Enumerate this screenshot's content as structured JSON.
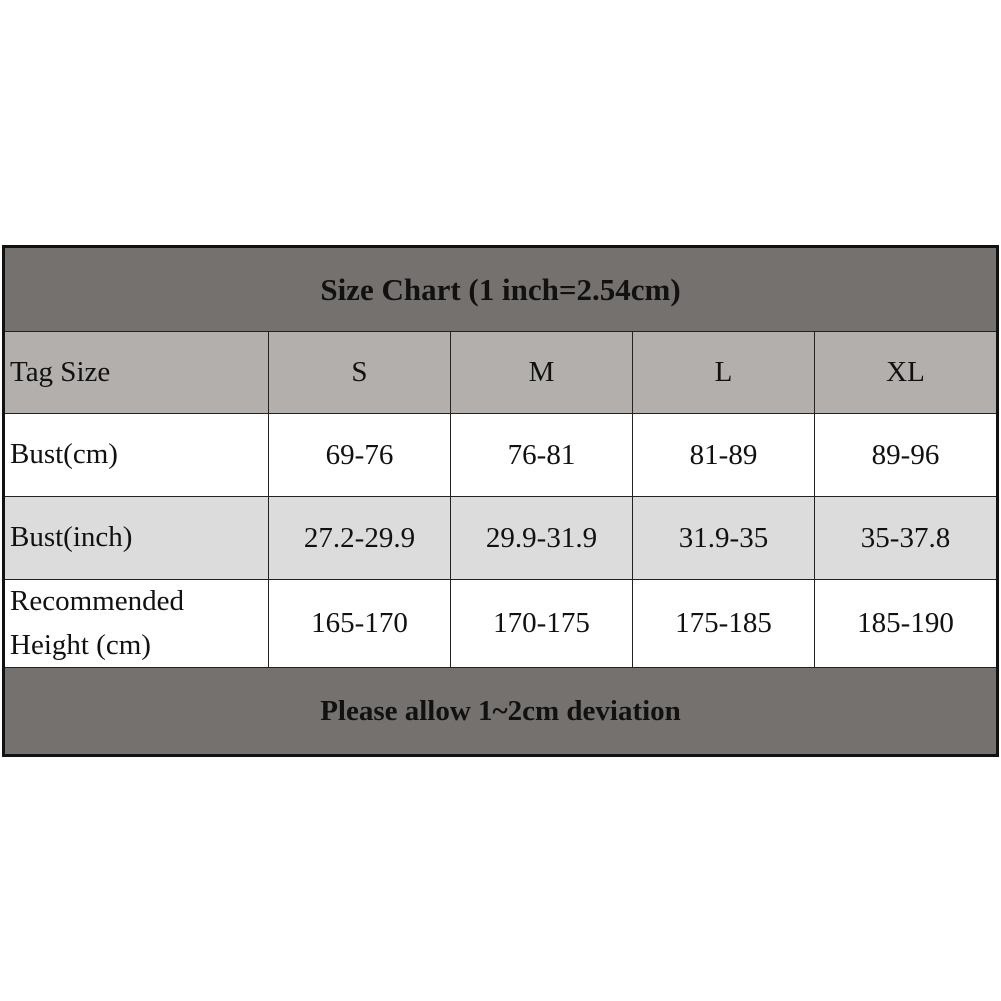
{
  "title": "Size Chart (1 inch=2.54cm)",
  "header": {
    "label": "Tag Size",
    "sizes": [
      "S",
      "M",
      "L",
      "XL"
    ]
  },
  "rows": [
    {
      "label": "Bust(cm)",
      "values": [
        "69-76",
        "76-81",
        "81-89",
        "89-96"
      ]
    },
    {
      "label": "Bust(inch)",
      "values": [
        "27.2-29.9",
        "29.9-31.9",
        "31.9-35",
        "35-37.8"
      ]
    },
    {
      "label_line1": "Recommended",
      "label_line2": "Height (cm)",
      "values": [
        "165-170",
        "170-175",
        "175-185",
        "185-190"
      ]
    }
  ],
  "footer": "Please allow 1~2cm deviation",
  "colors": {
    "title_bg": "#75716f",
    "header_bg": "#b3afad",
    "alt_row_bg": "#dcdcdc"
  }
}
